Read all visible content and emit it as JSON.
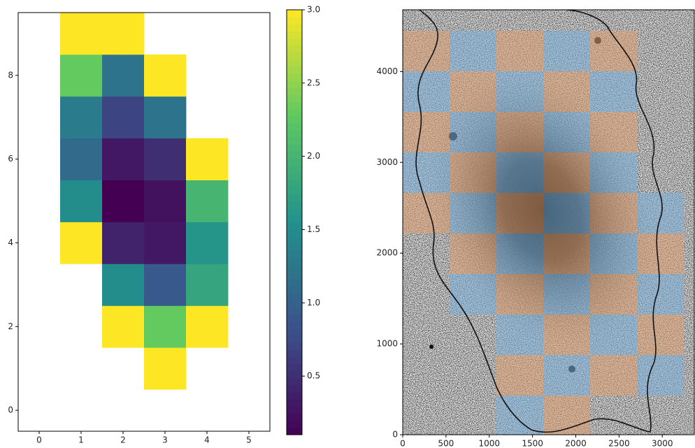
{
  "chart_data": [
    {
      "type": "heatmap",
      "x": [
        1,
        2,
        3,
        4
      ],
      "y": [
        1,
        2,
        3,
        4,
        5,
        6,
        7,
        8,
        9
      ],
      "z": [
        [
          null,
          null,
          3,
          null
        ],
        [
          null,
          3,
          2.3,
          3
        ],
        [
          null,
          1.5,
          0.9,
          1.8
        ],
        [
          3,
          0.4,
          0.3,
          1.6
        ],
        [
          1.5,
          0.1,
          0.25,
          2.0
        ],
        [
          1.1,
          0.3,
          0.5,
          3
        ],
        [
          1.3,
          0.7,
          1.2,
          null
        ],
        [
          2.3,
          1.2,
          3,
          null
        ],
        [
          3,
          3,
          null,
          null
        ]
      ],
      "colormap": "viridis",
      "xlim": [
        -0.5,
        5.5
      ],
      "ylim": [
        -0.5,
        9.5
      ],
      "xticks": [
        0,
        1,
        2,
        3,
        4,
        5
      ],
      "yticks": [
        0,
        2,
        4,
        6,
        8
      ],
      "clim": [
        0.1,
        3.0
      ],
      "cticks": [
        0.5,
        {
          "value": 1.0,
          "label": "1.0"
        },
        1.5,
        {
          "value": 2.0,
          "label": "2.0"
        },
        2.5,
        {
          "value": 3.0,
          "label": "3.0"
        }
      ]
    },
    {
      "type": "image",
      "xlim": [
        0,
        3370
      ],
      "ylim": [
        0,
        4680
      ],
      "xticks": [
        0,
        500,
        1000,
        1500,
        2000,
        2500,
        3000
      ],
      "yticks": [
        0,
        1000,
        2000,
        3000,
        4000
      ],
      "colors": [
        "#e0a070",
        "#7ab0dc"
      ]
    }
  ]
}
